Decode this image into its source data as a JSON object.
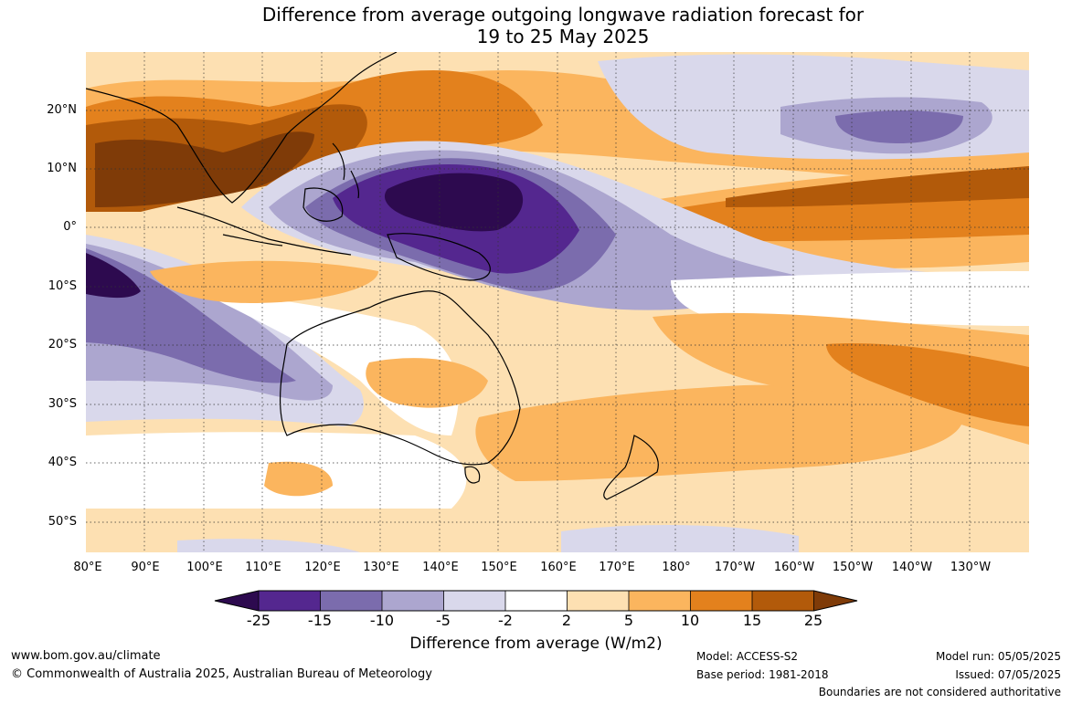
{
  "title": {
    "line1": "Difference from average outgoing longwave radiation forecast for",
    "line2": "19 to 25 May 2025"
  },
  "lat_labels": [
    "20°N",
    "10°N",
    "0°",
    "10°S",
    "20°S",
    "30°S",
    "40°S",
    "50°S"
  ],
  "lon_labels": [
    "80°E",
    "90°E",
    "100°E",
    "110°E",
    "120°E",
    "130°E",
    "140°E",
    "150°E",
    "160°E",
    "170°E",
    "180°",
    "170°W",
    "160°W",
    "150°W",
    "140°W",
    "130°W"
  ],
  "colorbar": {
    "ticks": [
      "-25",
      "-15",
      "-10",
      "-5",
      "-2",
      "2",
      "5",
      "10",
      "15",
      "25"
    ],
    "colors": [
      "#2d0a4f",
      "#54278f",
      "#7b6cad",
      "#aca6cf",
      "#d9d8eb",
      "#ffffff",
      "#fde0b2",
      "#fbb55e",
      "#e3811d",
      "#b25a0a",
      "#7f3b08"
    ],
    "label": "Difference from average (W/m2)"
  },
  "footer": {
    "url": "www.bom.gov.au/climate",
    "copyright": "© Commonwealth of Australia 2025, Australian Bureau of Meteorology",
    "model": "Model: ACCESS-S2",
    "base_period": "Base period: 1981-2018",
    "model_run": "Model run: 05/05/2025",
    "issued": "Issued: 07/05/2025",
    "boundaries": "Boundaries are not considered authoritative"
  }
}
